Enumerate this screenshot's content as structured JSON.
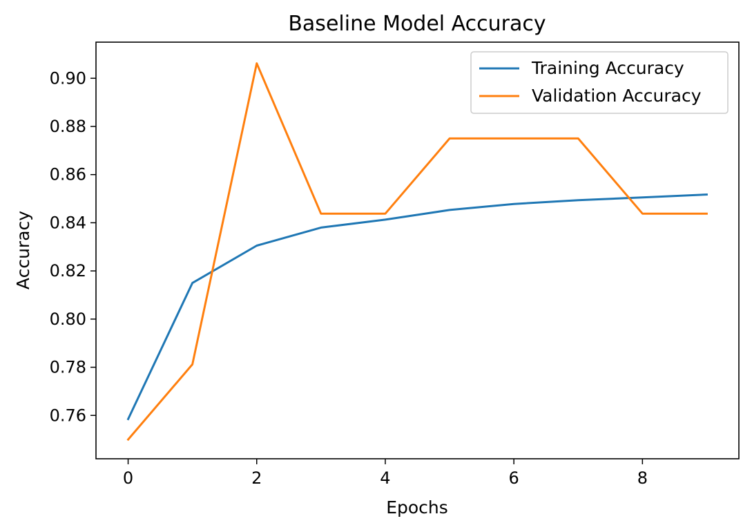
{
  "chart_data": {
    "type": "line",
    "title": "Baseline Model Accuracy",
    "xlabel": "Epochs",
    "ylabel": "Accuracy",
    "x": [
      0,
      1,
      2,
      3,
      4,
      5,
      6,
      7,
      8,
      9
    ],
    "xlim": [
      -0.5,
      9.5
    ],
    "ylim": [
      0.742,
      0.915
    ],
    "xticks": [
      0,
      2,
      4,
      6,
      8
    ],
    "yticks": [
      0.76,
      0.78,
      0.8,
      0.82,
      0.84,
      0.86,
      0.88,
      0.9
    ],
    "ytick_labels": [
      "0.76",
      "0.78",
      "0.80",
      "0.82",
      "0.84",
      "0.86",
      "0.88",
      "0.90"
    ],
    "grid": false,
    "legend_position": "top-right",
    "series": [
      {
        "name": "Training Accuracy",
        "color": "#1f77b4",
        "values": [
          0.7585,
          0.815,
          0.8305,
          0.838,
          0.8413,
          0.8453,
          0.8478,
          0.8494,
          0.8505,
          0.8517
        ]
      },
      {
        "name": "Validation Accuracy",
        "color": "#ff7f0e",
        "values": [
          0.75,
          0.7812,
          0.9062,
          0.8438,
          0.8438,
          0.875,
          0.875,
          0.875,
          0.8438,
          0.8438
        ]
      }
    ]
  }
}
